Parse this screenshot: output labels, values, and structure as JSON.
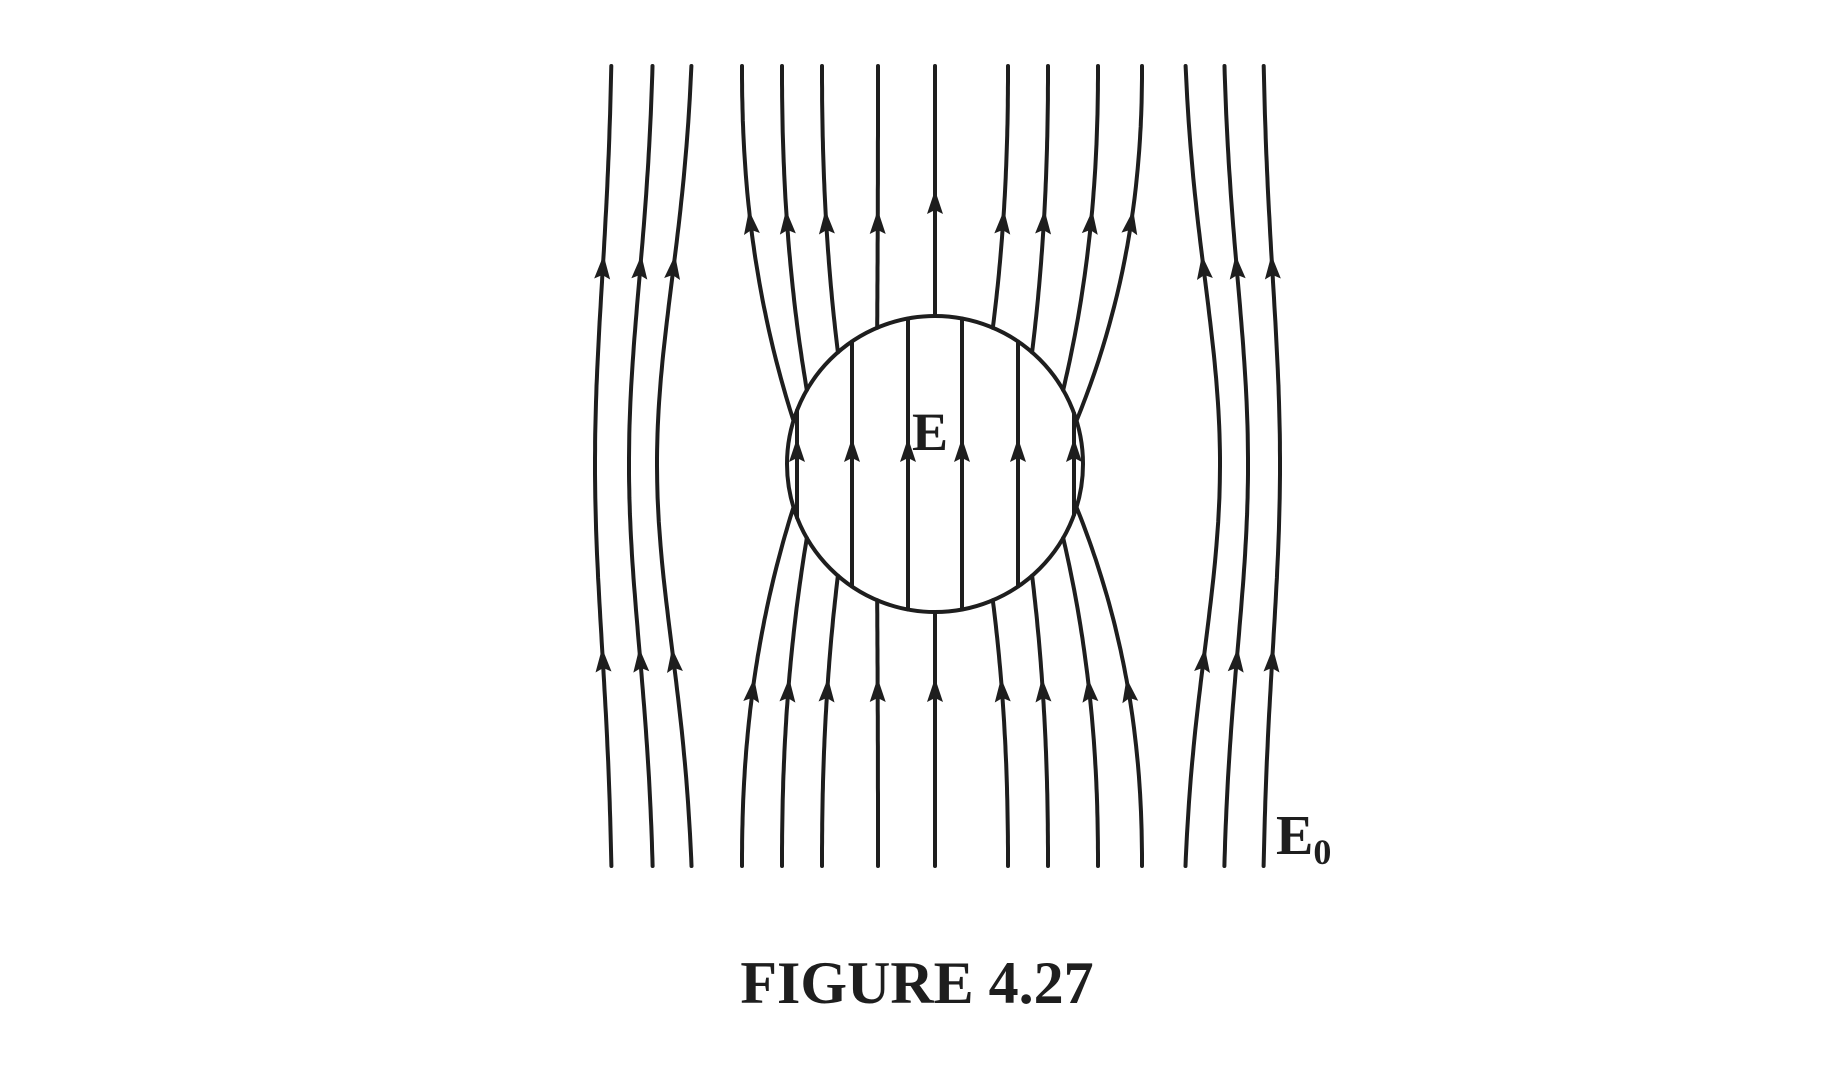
{
  "figure": {
    "inner_field_label": "E",
    "outer_field_label": "E",
    "outer_field_subscript": "0",
    "caption": "FIGURE 4.27",
    "line_color": "#1e1e1e"
  }
}
